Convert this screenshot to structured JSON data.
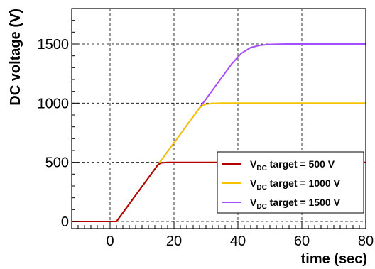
{
  "chart_data": {
    "type": "line",
    "title": "",
    "xlabel": "time (sec)",
    "ylabel": "DC voltage (V)",
    "xlim": [
      -12,
      80
    ],
    "ylim": [
      -60,
      1800
    ],
    "x_ticks": [
      0,
      20,
      40,
      60,
      80
    ],
    "y_ticks": [
      0,
      500,
      1000,
      1500
    ],
    "grid": true,
    "grid_style": "dashed",
    "legend_position": "bottom-right",
    "series": [
      {
        "name": "V_DC target = 500 V",
        "legend_main": "V",
        "legend_sub": "DC",
        "legend_rest": " target =  500 V",
        "color": "#b40000",
        "x": [
          -12,
          2,
          15,
          16,
          18,
          20,
          25,
          30,
          36,
          80
        ],
        "y": [
          0,
          0,
          480,
          495,
          499,
          500,
          500,
          500,
          500,
          500
        ]
      },
      {
        "name": "V_DC target = 1000 V",
        "legend_main": "V",
        "legend_sub": "DC",
        "legend_rest": " target = 1000 V",
        "color": "#f5c400",
        "x": [
          -12,
          2,
          15,
          28,
          29,
          30,
          32,
          35,
          40,
          80
        ],
        "y": [
          0,
          0,
          480,
          960,
          980,
          992,
          998,
          1000,
          1000,
          1000
        ]
      },
      {
        "name": "V_DC target = 1500 V",
        "legend_main": "V",
        "legend_sub": "DC",
        "legend_rest": " target = 1500 V",
        "color": "#a64dff",
        "x": [
          -12,
          2,
          15,
          28,
          38,
          41,
          44,
          47,
          50,
          55,
          80
        ],
        "y": [
          0,
          0,
          480,
          960,
          1330,
          1420,
          1470,
          1490,
          1497,
          1500,
          1500
        ]
      }
    ]
  }
}
